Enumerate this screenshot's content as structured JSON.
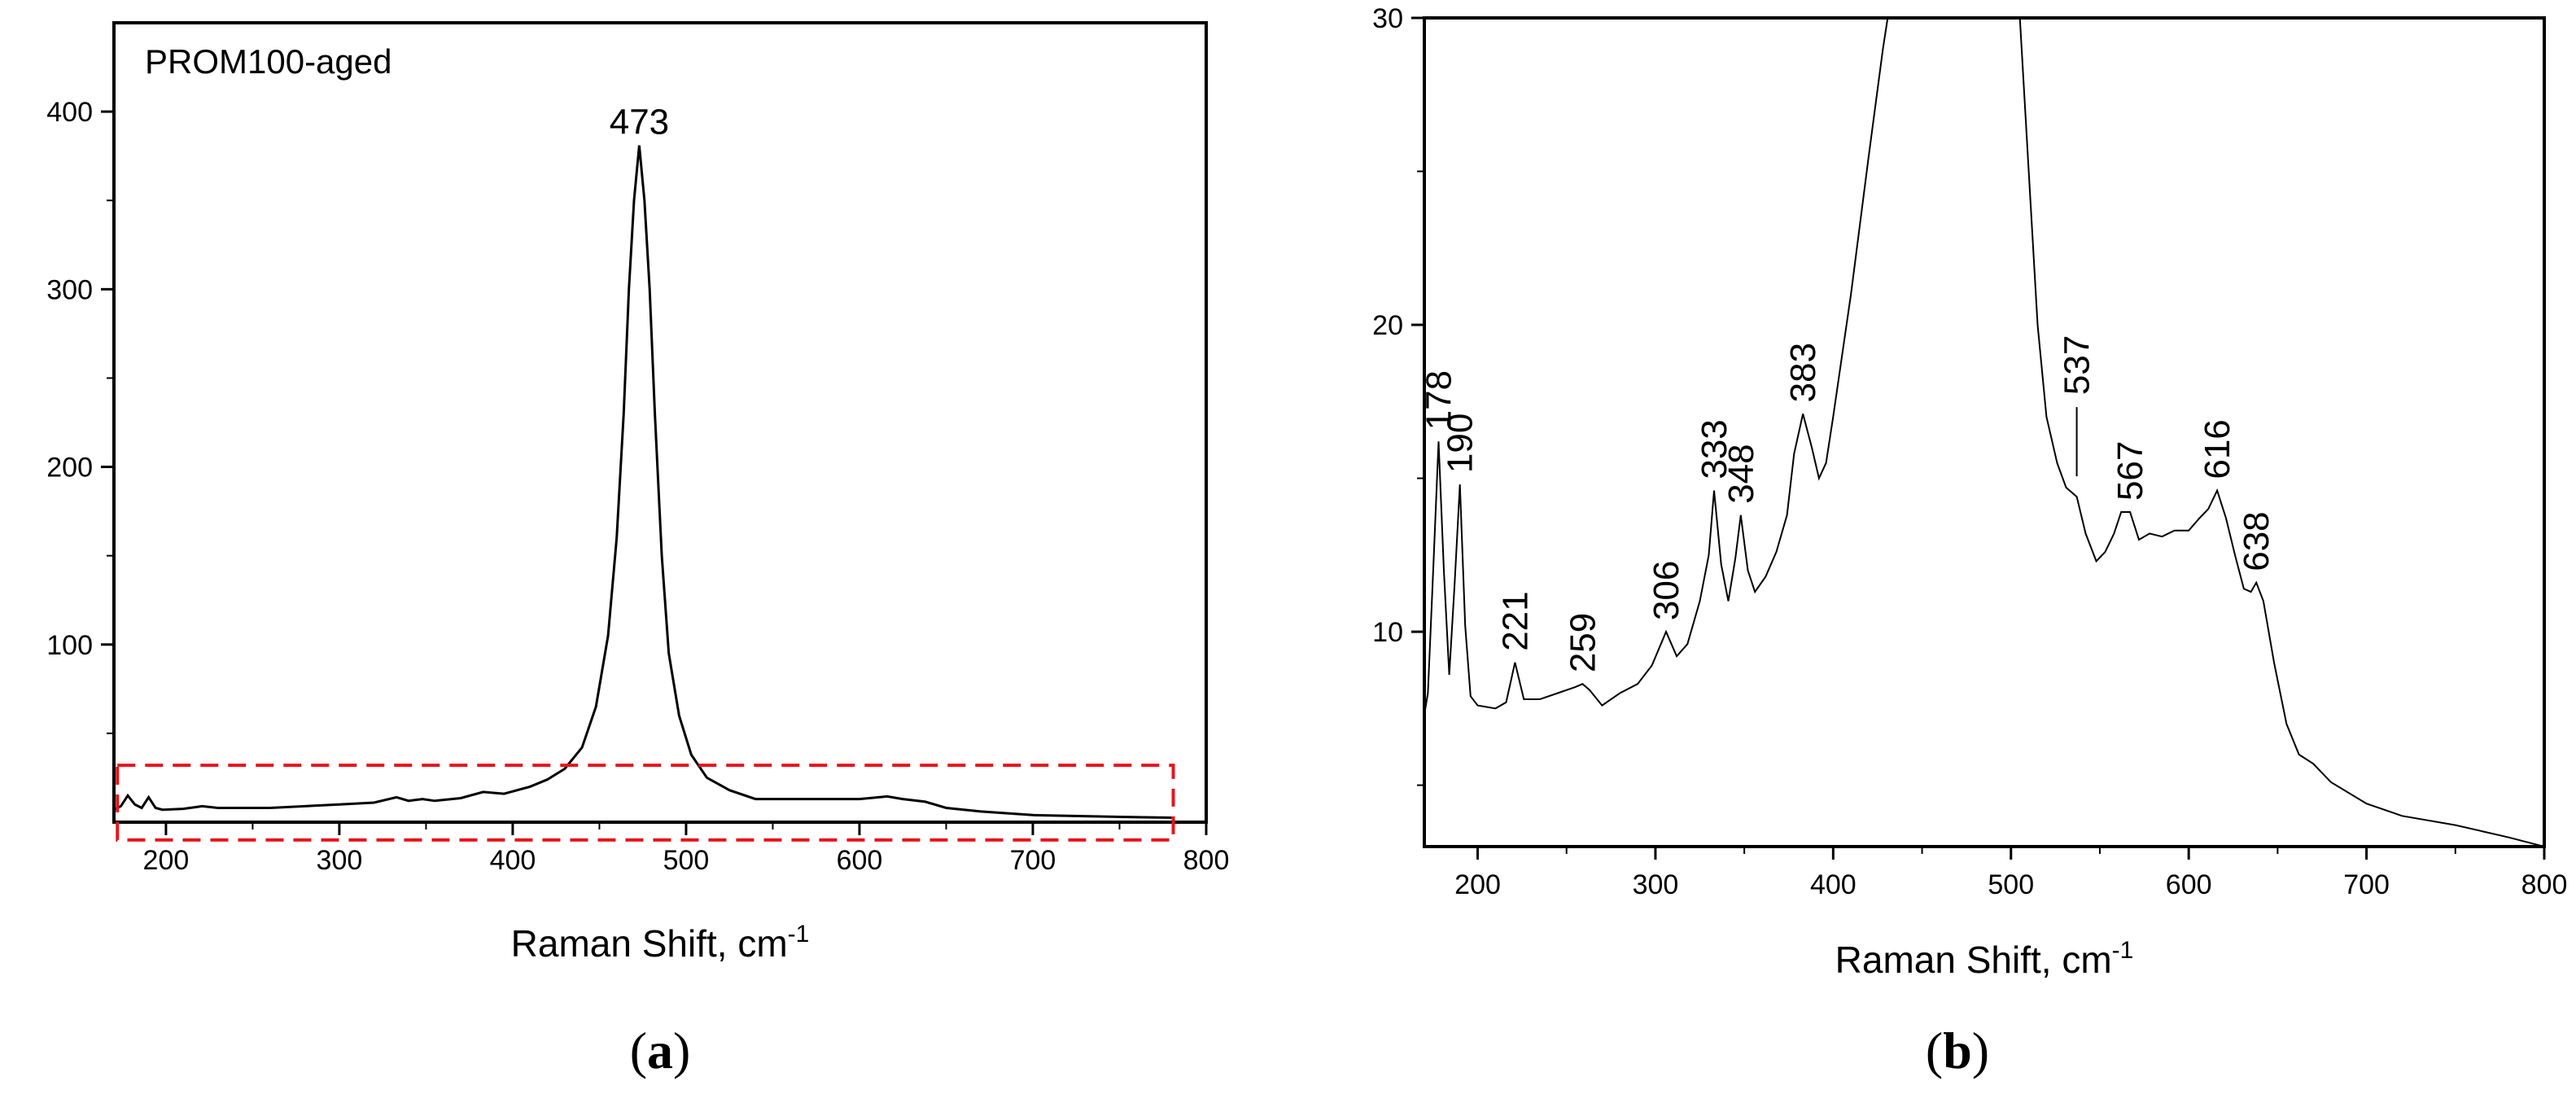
{
  "chart_data": [
    {
      "type": "line",
      "panel_label": "a",
      "inset_label": "PROM100-aged",
      "xlabel": "Raman Shift, cm",
      "xlabel_sup": "-1",
      "ylabel": "",
      "xlim": [
        170,
        800
      ],
      "ylim": [
        0,
        450
      ],
      "xticks": [
        200,
        300,
        400,
        500,
        600,
        700,
        800
      ],
      "yticks": [
        100,
        200,
        300,
        400
      ],
      "grid": false,
      "zoom_box": {
        "x": [
          172,
          781
        ],
        "y": [
          -10,
          32
        ],
        "color": "#e8141b"
      },
      "annotations": [
        {
          "text": "473",
          "x": 473,
          "y": 381
        }
      ],
      "series": [
        {
          "x": [
            170,
            174,
            178,
            182,
            186,
            190,
            194,
            198,
            210,
            221,
            230,
            260,
            300,
            320,
            333,
            340,
            348,
            355,
            370,
            383,
            395,
            410,
            420,
            430,
            440,
            448,
            455,
            460,
            464,
            467,
            470,
            473,
            476,
            479,
            482,
            486,
            490,
            496,
            503,
            512,
            525,
            540,
            560,
            580,
            600,
            616,
            625,
            638,
            650,
            670,
            700,
            750,
            780
          ],
          "y": [
            7,
            9,
            15,
            10,
            8,
            14,
            8,
            7,
            7.5,
            9,
            8,
            8,
            10,
            11,
            14,
            12,
            13,
            12,
            13.5,
            17,
            16,
            20,
            24,
            30,
            42,
            65,
            105,
            160,
            230,
            300,
            350,
            381,
            350,
            300,
            230,
            150,
            95,
            60,
            38,
            25,
            18,
            13,
            13,
            13,
            13,
            14.5,
            13,
            11.5,
            8,
            6,
            4,
            3,
            2.5
          ]
        }
      ]
    },
    {
      "type": "line",
      "panel_label": "b",
      "xlabel": "Raman Shift, cm",
      "xlabel_sup": "-1",
      "ylabel": "",
      "xlim": [
        170,
        800
      ],
      "ylim": [
        3,
        30
      ],
      "xticks": [
        200,
        300,
        400,
        500,
        600,
        700,
        800
      ],
      "yticks": [
        10,
        20,
        30
      ],
      "grid": false,
      "annotations": [
        {
          "text": "178",
          "x": 178,
          "y": 16.2,
          "color": "#000000"
        },
        {
          "text": "190",
          "x": 190,
          "y": 14.8,
          "color": "#000000"
        },
        {
          "text": "221",
          "x": 221,
          "y": 9.0,
          "color": "#000000"
        },
        {
          "text": "259",
          "x": 259,
          "y": 8.3,
          "color": "#808080"
        },
        {
          "text": "306",
          "x": 306,
          "y": 10.0,
          "color": "#000000"
        },
        {
          "text": "333",
          "x": 333,
          "y": 14.6,
          "color": "#000000"
        },
        {
          "text": "348",
          "x": 348,
          "y": 13.8,
          "color": "#000000"
        },
        {
          "text": "383",
          "x": 383,
          "y": 17.1,
          "color": "#000000"
        },
        {
          "text": "537",
          "x": 537,
          "y": 14.8,
          "color": "#000000",
          "leader": true
        },
        {
          "text": "567",
          "x": 567,
          "y": 13.9,
          "color": "#000000"
        },
        {
          "text": "616",
          "x": 616,
          "y": 14.6,
          "color": "#000000"
        },
        {
          "text": "638",
          "x": 638,
          "y": 11.6,
          "color": "#000000"
        }
      ],
      "series": [
        {
          "x": [
            170,
            172,
            175,
            178,
            181,
            184,
            187,
            190,
            193,
            196,
            200,
            210,
            216,
            221,
            226,
            235,
            245,
            255,
            259,
            263,
            270,
            280,
            290,
            298,
            306,
            312,
            318,
            325,
            330,
            333,
            337,
            341,
            345,
            348,
            352,
            356,
            362,
            368,
            374,
            378,
            383,
            388,
            392,
            396,
            400,
            410,
            420,
            428,
            432,
            434,
            503,
            505,
            510,
            515,
            520,
            526,
            531,
            537,
            542,
            548,
            553,
            558,
            562,
            567,
            572,
            578,
            585,
            592,
            600,
            606,
            611,
            616,
            621,
            626,
            631,
            635,
            638,
            642,
            648,
            655,
            662,
            670,
            680,
            700,
            720,
            750,
            780,
            800
          ],
          "y": [
            7.3,
            8.0,
            12.0,
            16.2,
            12.0,
            8.6,
            11.5,
            14.8,
            10.2,
            7.9,
            7.6,
            7.5,
            7.7,
            9.0,
            7.8,
            7.8,
            8.0,
            8.2,
            8.3,
            8.1,
            7.6,
            8.0,
            8.3,
            8.9,
            10.0,
            9.2,
            9.6,
            11.0,
            12.5,
            14.6,
            12.2,
            11.0,
            12.4,
            13.8,
            12.0,
            11.3,
            11.8,
            12.6,
            13.8,
            15.8,
            17.1,
            16.0,
            15.0,
            15.5,
            17.0,
            21.0,
            25.5,
            29.0,
            30.5,
            31,
            31,
            30.0,
            25.0,
            20.0,
            17.0,
            15.5,
            14.7,
            14.4,
            13.2,
            12.3,
            12.6,
            13.2,
            13.9,
            13.9,
            13.0,
            13.2,
            13.1,
            13.3,
            13.3,
            13.7,
            14.0,
            14.6,
            13.7,
            12.5,
            11.4,
            11.3,
            11.6,
            11.0,
            9.0,
            7.0,
            6.0,
            5.7,
            5.1,
            4.4,
            4.0,
            3.7,
            3.3,
            3.0
          ]
        }
      ]
    }
  ]
}
